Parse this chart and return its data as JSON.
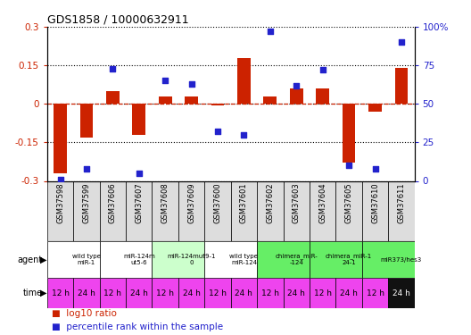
{
  "title": "GDS1858 / 10000632911",
  "samples": [
    "GSM37598",
    "GSM37599",
    "GSM37606",
    "GSM37607",
    "GSM37608",
    "GSM37609",
    "GSM37600",
    "GSM37601",
    "GSM37602",
    "GSM37603",
    "GSM37604",
    "GSM37605",
    "GSM37610",
    "GSM37611"
  ],
  "log10_ratio": [
    -0.27,
    -0.13,
    0.05,
    -0.12,
    0.03,
    0.03,
    -0.005,
    0.18,
    0.03,
    0.06,
    0.06,
    -0.23,
    -0.03,
    0.14
  ],
  "percentile_rank": [
    1.0,
    8.0,
    73.0,
    5.0,
    65.0,
    63.0,
    32.0,
    30.0,
    97.0,
    62.0,
    72.0,
    10.0,
    8.0,
    90.0
  ],
  "ylim": [
    -0.3,
    0.3
  ],
  "y2lim": [
    0,
    100
  ],
  "yticks": [
    -0.3,
    -0.15,
    0.0,
    0.15,
    0.3
  ],
  "y2ticks": [
    0,
    25,
    50,
    75,
    100
  ],
  "ytick_labels": [
    "-0.3",
    "-0.15",
    "0",
    "0.15",
    "0.3"
  ],
  "y2tick_labels": [
    "0",
    "25",
    "50",
    "75",
    "100%"
  ],
  "bar_color": "#cc2200",
  "dot_color": "#2222cc",
  "agent_groups": [
    {
      "label": "wild type\nmiR-1",
      "start": 0,
      "end": 2,
      "color": "#ffffff"
    },
    {
      "label": "miR-124m\nut5-6",
      "start": 2,
      "end": 4,
      "color": "#ffffff"
    },
    {
      "label": "miR-124mut9-1\n0",
      "start": 4,
      "end": 6,
      "color": "#ccffcc"
    },
    {
      "label": "wild type\nmiR-124",
      "start": 6,
      "end": 8,
      "color": "#ffffff"
    },
    {
      "label": "chimera_miR-\n-124",
      "start": 8,
      "end": 10,
      "color": "#66ee66"
    },
    {
      "label": "chimera_miR-1\n24-1",
      "start": 10,
      "end": 12,
      "color": "#66ee66"
    },
    {
      "label": "miR373/hes3",
      "start": 12,
      "end": 14,
      "color": "#66ee66"
    }
  ],
  "time_labels": [
    "12 h",
    "24 h",
    "12 h",
    "24 h",
    "12 h",
    "24 h",
    "12 h",
    "24 h",
    "12 h",
    "24 h",
    "12 h",
    "24 h",
    "12 h",
    "24 h"
  ],
  "time_bg": [
    "#ee44ee",
    "#ee44ee",
    "#ee44ee",
    "#ee44ee",
    "#ee44ee",
    "#ee44ee",
    "#ee44ee",
    "#ee44ee",
    "#ee44ee",
    "#ee44ee",
    "#ee44ee",
    "#ee44ee",
    "#ee44ee",
    "#111111"
  ],
  "time_fg": [
    "black",
    "black",
    "black",
    "black",
    "black",
    "black",
    "black",
    "black",
    "black",
    "black",
    "black",
    "black",
    "black",
    "white"
  ],
  "fig_width": 5.28,
  "fig_height": 3.75,
  "dpi": 100
}
